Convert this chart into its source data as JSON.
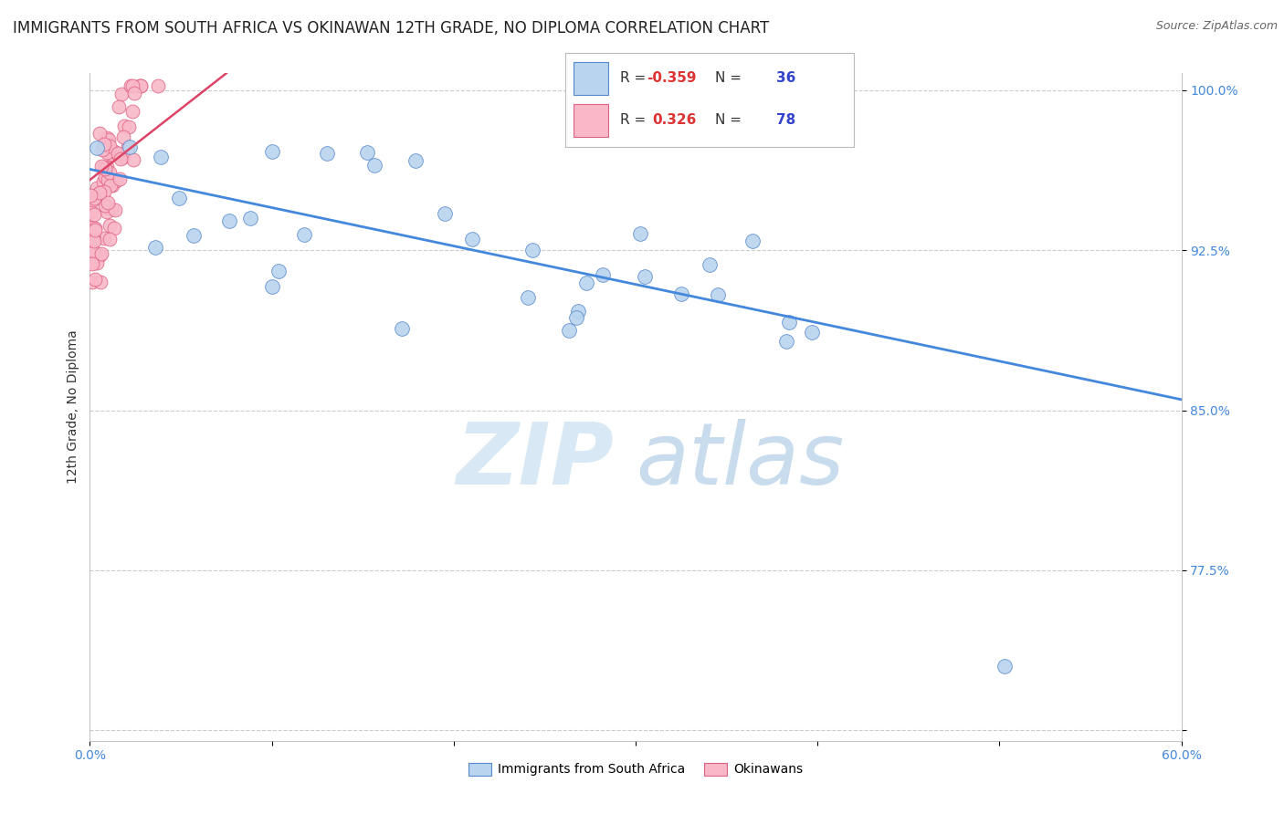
{
  "title": "IMMIGRANTS FROM SOUTH AFRICA VS OKINAWAN 12TH GRADE, NO DIPLOMA CORRELATION CHART",
  "source": "Source: ZipAtlas.com",
  "ylabel": "12th Grade, No Diploma",
  "xlim": [
    0.0,
    0.6
  ],
  "ylim": [
    0.695,
    1.008
  ],
  "xtick_positions": [
    0.0,
    0.1,
    0.2,
    0.3,
    0.4,
    0.5,
    0.6
  ],
  "xtick_labels": [
    "0.0%",
    "",
    "",
    "",
    "",
    "",
    "60.0%"
  ],
  "ytick_positions": [
    0.7,
    0.775,
    0.85,
    0.925,
    1.0
  ],
  "ytick_labels": [
    "",
    "77.5%",
    "85.0%",
    "92.5%",
    "100.0%"
  ],
  "blue_color": "#b8d4ee",
  "blue_edge": "#5588cc",
  "pink_color": "#f8b8c8",
  "pink_edge": "#e06080",
  "trend_blue_color": "#4488dd",
  "trend_pink_color": "#dd4466",
  "legend_R_blue": "-0.359",
  "legend_N_blue": "36",
  "legend_R_pink": "0.326",
  "legend_N_pink": "78",
  "blue_trend_x0": 0.0,
  "blue_trend_y0": 0.963,
  "blue_trend_x1": 0.6,
  "blue_trend_y1": 0.855,
  "pink_trend_x0": 0.0,
  "pink_trend_y0": 0.958,
  "pink_trend_x1": 0.075,
  "pink_trend_y1": 1.008,
  "grid_color": "#cccccc",
  "tick_color": "#4488dd",
  "background_color": "#ffffff",
  "title_fontsize": 12,
  "source_fontsize": 9,
  "axis_label_fontsize": 10,
  "tick_fontsize": 10,
  "marker_size": 8,
  "watermark_zip_color": "#d8e8f4",
  "watermark_atlas_color": "#c8dced"
}
